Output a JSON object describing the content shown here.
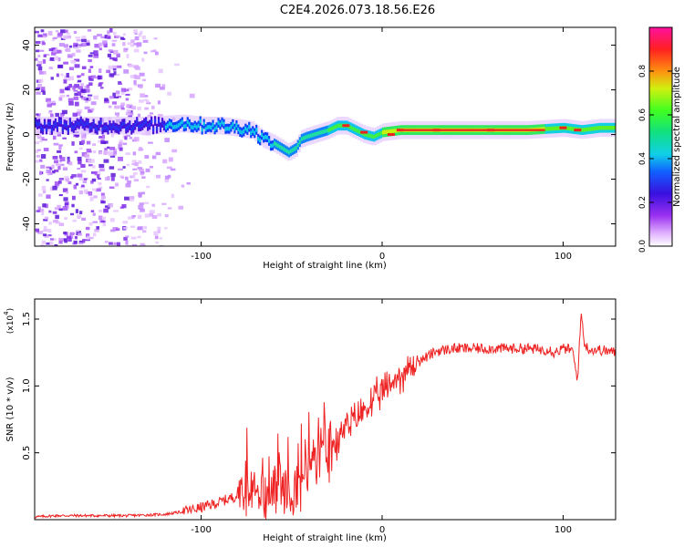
{
  "title": "C2E4.2026.073.18.56.E26",
  "chart_data": [
    {
      "type": "heatmap",
      "name": "spectrogram",
      "xlabel": "Height of straight line (km)",
      "ylabel": "Frequency (Hz)",
      "xlim": [
        -192,
        129
      ],
      "ylim": [
        -50,
        48
      ],
      "xticks": [
        -100,
        0,
        100
      ],
      "yticks": [
        -40,
        -20,
        0,
        20,
        40
      ],
      "ridge": {
        "x": [
          -190,
          -170,
          -150,
          -130,
          -110,
          -100,
          -90,
          -80,
          -72,
          -66,
          -60,
          -56,
          -52,
          -48,
          -45,
          -42,
          -38,
          -34,
          -30,
          -25,
          -20,
          -15,
          -10,
          -5,
          0,
          10,
          20,
          40,
          60,
          80,
          100,
          110,
          120,
          129
        ],
        "freq": [
          4,
          4,
          4,
          4,
          5,
          4,
          4,
          3,
          2,
          -2,
          -4,
          -6,
          -8,
          -6,
          -2,
          -1,
          0,
          1,
          2,
          4,
          4,
          2,
          0,
          -1,
          1,
          2,
          2,
          2,
          2,
          2,
          3,
          2,
          3,
          3
        ]
      },
      "colorbar": {
        "label": "Normalized spectral amplitude",
        "ticks": [
          "0.0",
          "0.2",
          "0.4",
          "0.6",
          "0.8"
        ],
        "range": [
          0,
          1
        ]
      }
    },
    {
      "type": "line",
      "name": "snr",
      "xlabel": "Height of straight line (km)",
      "ylabel": "SNR (10 * v/v)",
      "scale_label": "(x10",
      "scale_exp": "4",
      "scale_close": ")",
      "color": "#ee2222",
      "xlim": [
        -192,
        129
      ],
      "ylim": [
        0,
        1.65
      ],
      "xticks": [
        -100,
        0,
        100
      ],
      "yticks": [
        "0.5",
        "1.0",
        "1.5"
      ],
      "series": {
        "x": [
          -192,
          -180,
          -160,
          -140,
          -120,
          -110,
          -100,
          -90,
          -80,
          -75,
          -70,
          -65,
          -60,
          -55,
          -50,
          -45,
          -40,
          -35,
          -30,
          -25,
          -20,
          -15,
          -10,
          -5,
          0,
          5,
          10,
          15,
          20,
          30,
          40,
          60,
          80,
          90,
          92,
          95,
          100,
          105,
          108,
          110,
          112,
          115,
          120,
          129
        ],
        "y": [
          0.02,
          0.03,
          0.03,
          0.03,
          0.04,
          0.06,
          0.09,
          0.13,
          0.18,
          0.24,
          0.26,
          0.22,
          0.2,
          0.25,
          0.3,
          0.33,
          0.4,
          0.45,
          0.53,
          0.6,
          0.68,
          0.75,
          0.82,
          0.88,
          0.95,
          1.02,
          1.08,
          1.12,
          1.18,
          1.26,
          1.28,
          1.28,
          1.28,
          1.27,
          1.28,
          1.25,
          1.28,
          1.27,
          1.05,
          1.55,
          1.3,
          1.27,
          1.27,
          1.25
        ]
      }
    }
  ]
}
